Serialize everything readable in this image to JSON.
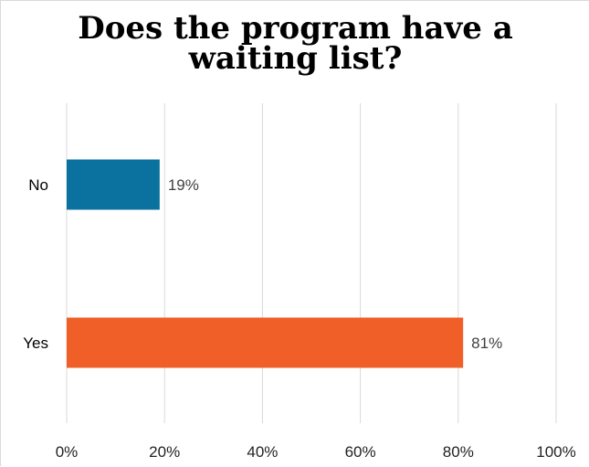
{
  "chart_data": {
    "type": "bar",
    "orientation": "horizontal",
    "title_lines": [
      "Does the program have a",
      "waiting list?"
    ],
    "categories": [
      "No",
      "Yes"
    ],
    "values": [
      19,
      81
    ],
    "data_labels": [
      "19%",
      "81%"
    ],
    "colors": [
      "#0b72a0",
      "#f05f28"
    ],
    "xlim": [
      0,
      100
    ],
    "x_ticks": [
      0,
      20,
      40,
      60,
      80,
      100
    ],
    "x_tick_labels": [
      "0%",
      "20%",
      "40%",
      "60%",
      "80%",
      "100%"
    ],
    "xlabel": "",
    "ylabel": "",
    "grid": true,
    "grid_color": "#d9d9d9",
    "legend": "none"
  }
}
